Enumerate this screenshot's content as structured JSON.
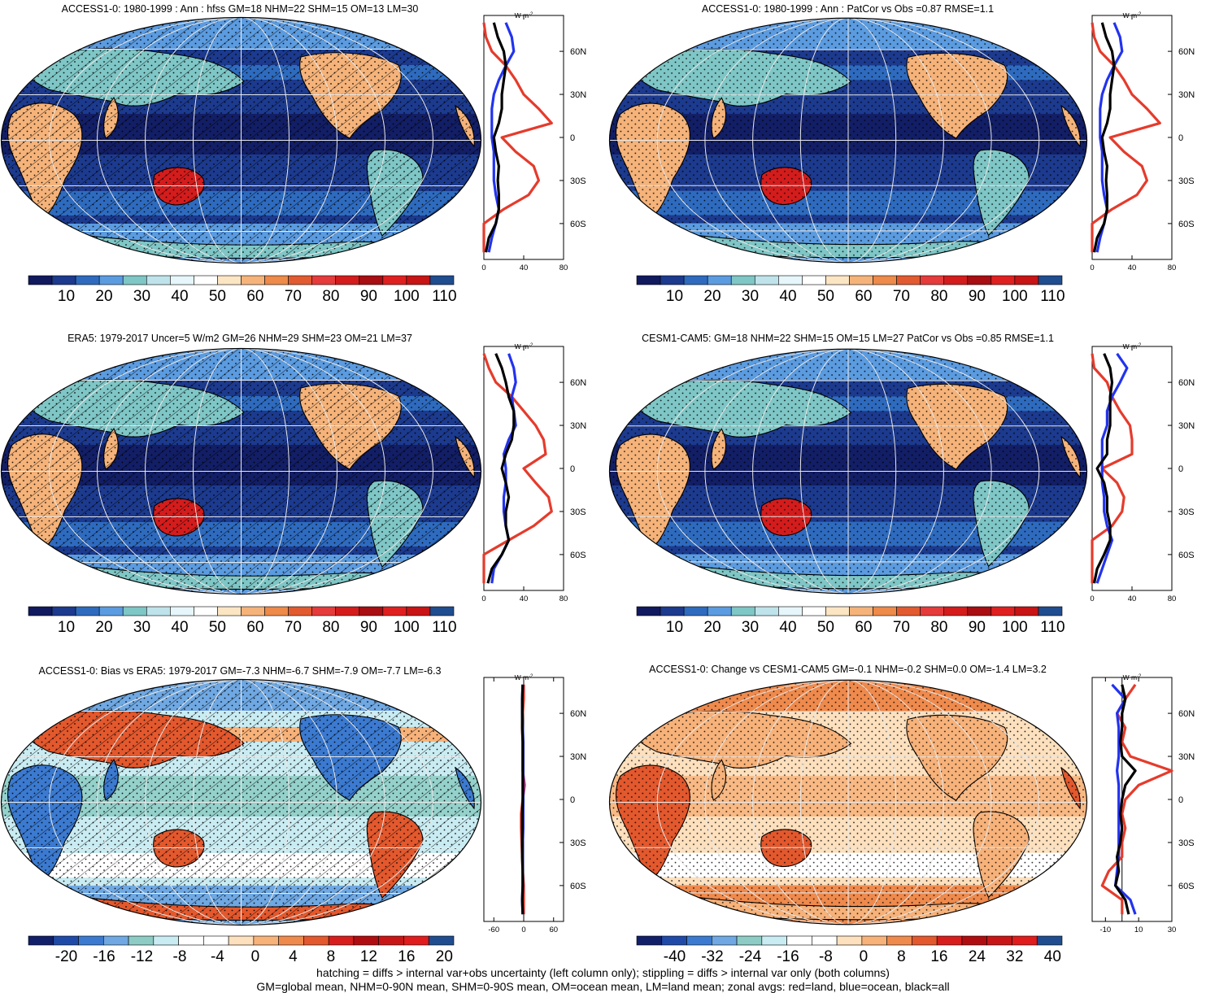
{
  "colors": {
    "land": "#e53b2c",
    "ocean": "#2233ee",
    "all": "#000000",
    "seq": [
      "#111a5e",
      "#1c3a8e",
      "#2e6bbf",
      "#5b9be0",
      "#7fc6c6",
      "#bfe3ea",
      "#e6f6fa",
      "#ffffff",
      "#fbe5c3",
      "#f5b37a",
      "#ee8a4a",
      "#e25a30",
      "#e63b3b",
      "#d41c1c",
      "#a80e12",
      "#e02020",
      "#c81414",
      "#1f4d8f"
    ],
    "div": [
      "#12206a",
      "#1f4aa8",
      "#3b7ad0",
      "#6fa8e2",
      "#8cccc4",
      "#c9ecf2",
      "#ffffff",
      "#ffffff",
      "#fde0bd",
      "#f7b27a",
      "#ef8a4d",
      "#e3582d",
      "#d81d1d",
      "#b00d10",
      "#c81616",
      "#e01c1c",
      "#1f4d8f"
    ]
  },
  "panels": [
    {
      "title": "ACCESS1-0: 1980-1999 : Ann : hfss GM=18 NHM=22 SHM=15 OM=13 LM=30",
      "colorbar": {
        "labels": [
          "10",
          "20",
          "30",
          "40",
          "50",
          "60",
          "70",
          "80",
          "90",
          "100",
          "110"
        ],
        "scheme": "seq"
      },
      "zonal": {
        "units": "W m",
        "units_exp": "-2",
        "x_ticks": [
          "0",
          "40",
          "80"
        ],
        "xlim": [
          0,
          80
        ],
        "lat_labels": [
          "60N",
          "30N",
          "0",
          "30S",
          "60S"
        ]
      }
    },
    {
      "title": "ACCESS1-0: 1980-1999 : Ann : PatCor vs Obs =0.87 RMSE=1.1",
      "colorbar": {
        "labels": [
          "10",
          "20",
          "30",
          "40",
          "50",
          "60",
          "70",
          "80",
          "90",
          "100",
          "110"
        ],
        "scheme": "seq"
      },
      "zonal": {
        "units": "W m",
        "units_exp": "-2",
        "x_ticks": [
          "0",
          "40",
          "80"
        ],
        "xlim": [
          0,
          80
        ],
        "lat_labels": [
          "60N",
          "30N",
          "0",
          "30S",
          "60S"
        ]
      }
    },
    {
      "title": "ERA5: 1979-2017 Uncer=5 W/m2 GM=26 NHM=29 SHM=23 OM=21 LM=37",
      "colorbar": {
        "labels": [
          "10",
          "20",
          "30",
          "40",
          "50",
          "60",
          "70",
          "80",
          "90",
          "100",
          "110"
        ],
        "scheme": "seq"
      },
      "zonal": {
        "units": "W m",
        "units_exp": "-2",
        "x_ticks": [
          "0",
          "40",
          "80"
        ],
        "xlim": [
          0,
          80
        ],
        "lat_labels": [
          "60N",
          "30N",
          "0",
          "30S",
          "60S"
        ]
      }
    },
    {
      "title": "CESM1-CAM5: GM=18 NHM=22 SHM=15 OM=15 LM=27 PatCor vs Obs =0.85 RMSE=1.1",
      "colorbar": {
        "labels": [
          "10",
          "20",
          "30",
          "40",
          "50",
          "60",
          "70",
          "80",
          "90",
          "100",
          "110"
        ],
        "scheme": "seq"
      },
      "zonal": {
        "units": "W m",
        "units_exp": "-2",
        "x_ticks": [
          "0",
          "40",
          "80"
        ],
        "xlim": [
          0,
          80
        ],
        "lat_labels": [
          "60N",
          "30N",
          "0",
          "30S",
          "60S"
        ]
      }
    },
    {
      "title": "ACCESS1-0: Bias vs ERA5: 1979-2017 GM=-7.3 NHM=-6.7 SHM=-7.9 OM=-7.7 LM=-6.3",
      "colorbar": {
        "labels": [
          "-20",
          "-16",
          "-12",
          "-8",
          "-4",
          "0",
          "4",
          "8",
          "12",
          "16",
          "20"
        ],
        "scheme": "div"
      },
      "zonal": {
        "units": "W m",
        "units_exp": "-2",
        "x_ticks": [
          "-60",
          "0",
          "60"
        ],
        "xlim": [
          -80,
          80
        ],
        "lat_labels": [
          "60N",
          "30N",
          "0",
          "30S",
          "60S"
        ]
      }
    },
    {
      "title": "ACCESS1-0: Change vs CESM1-CAM5 GM=-0.1 NHM=-0.2 SHM=0.0 OM=-1.4 LM=3.2",
      "colorbar": {
        "labels": [
          "-40",
          "-32",
          "-24",
          "-16",
          "-8",
          "0",
          "8",
          "16",
          "24",
          "32",
          "40"
        ],
        "scheme": "div"
      },
      "zonal": {
        "units": "W m",
        "units_exp": "-2",
        "x_ticks": [
          "-10",
          "10",
          "30"
        ],
        "xlim": [
          -18,
          30
        ],
        "lat_labels": [
          "60N",
          "30N",
          "0",
          "30S",
          "60S"
        ]
      }
    }
  ],
  "chart_data": {
    "type": "line",
    "lat_axis": [
      80,
      70,
      60,
      50,
      40,
      30,
      20,
      10,
      0,
      -10,
      -20,
      -30,
      -40,
      -50,
      -60,
      -70,
      -80
    ],
    "zonal_means": [
      {
        "panel": 1,
        "land": [
          0,
          2,
          8,
          22,
          32,
          40,
          55,
          68,
          18,
          32,
          50,
          55,
          45,
          20,
          0,
          0,
          0
        ],
        "ocean": [
          22,
          28,
          30,
          22,
          15,
          10,
          8,
          8,
          8,
          10,
          10,
          10,
          12,
          15,
          12,
          8,
          5
        ],
        "all": [
          10,
          14,
          20,
          22,
          20,
          18,
          18,
          15,
          10,
          12,
          15,
          14,
          15,
          15,
          12,
          5,
          2
        ]
      },
      {
        "panel": 2,
        "land": [
          0,
          2,
          8,
          22,
          32,
          40,
          55,
          68,
          18,
          32,
          50,
          55,
          45,
          20,
          0,
          0,
          0
        ],
        "ocean": [
          22,
          28,
          30,
          22,
          15,
          10,
          8,
          8,
          8,
          10,
          10,
          10,
          12,
          15,
          12,
          8,
          5
        ],
        "all": [
          10,
          14,
          20,
          22,
          20,
          18,
          18,
          15,
          10,
          12,
          15,
          14,
          15,
          15,
          12,
          5,
          2
        ]
      },
      {
        "panel": 3,
        "land": [
          0,
          5,
          12,
          28,
          40,
          52,
          60,
          62,
          40,
          52,
          65,
          68,
          50,
          25,
          0,
          0,
          0
        ],
        "ocean": [
          25,
          30,
          32,
          28,
          30,
          32,
          25,
          20,
          22,
          22,
          20,
          20,
          22,
          25,
          18,
          10,
          8
        ],
        "all": [
          12,
          18,
          22,
          25,
          30,
          30,
          28,
          22,
          18,
          22,
          25,
          22,
          22,
          25,
          18,
          8,
          4
        ]
      },
      {
        "panel": 4,
        "land": [
          0,
          2,
          15,
          20,
          28,
          38,
          40,
          40,
          10,
          25,
          32,
          30,
          20,
          0,
          0,
          0,
          0
        ],
        "ocean": [
          25,
          35,
          28,
          20,
          15,
          15,
          10,
          10,
          10,
          10,
          12,
          12,
          15,
          20,
          15,
          10,
          5
        ],
        "all": [
          12,
          18,
          20,
          18,
          18,
          18,
          15,
          15,
          5,
          12,
          15,
          15,
          18,
          18,
          12,
          5,
          2
        ]
      },
      {
        "panel": 5,
        "land": [
          0,
          0,
          -2,
          -3,
          -2,
          -2,
          -2,
          2,
          -2,
          -5,
          -5,
          -4,
          -3,
          -2,
          0,
          0,
          0
        ],
        "ocean": [
          -2,
          -3,
          -3,
          -2,
          -1,
          -1,
          -1,
          -1,
          -1,
          -1,
          -1,
          -2,
          -2,
          -2,
          -2,
          -3,
          -2
        ],
        "all": [
          -2,
          -3,
          -3,
          -3,
          -2,
          -2,
          -2,
          -2,
          -2,
          -3,
          -3,
          -3,
          -3,
          -2,
          -2,
          -3,
          -2
        ]
      },
      {
        "panel": 6,
        "land": [
          8,
          2,
          -3,
          2,
          0,
          5,
          30,
          10,
          2,
          0,
          2,
          0,
          0,
          -8,
          -12,
          0,
          0
        ],
        "ocean": [
          -6,
          2,
          -3,
          -2,
          -2,
          -2,
          -3,
          -2,
          -2,
          -2,
          -2,
          -2,
          -2,
          -3,
          -4,
          5,
          8
        ],
        "all": [
          0,
          2,
          0,
          0,
          -1,
          0,
          8,
          2,
          0,
          -1,
          0,
          -1,
          -3,
          -2,
          -4,
          2,
          4
        ]
      }
    ]
  },
  "footer": {
    "line1": "hatching = diffs > internal var+obs uncertainty (left column only); stippling = diffs > internal var only (both columns)",
    "line2": "GM=global mean, NHM=0-90N mean, SHM=0-90S mean, OM=ocean mean, LM=land mean; zonal avgs: red=land, blue=ocean, black=all"
  }
}
